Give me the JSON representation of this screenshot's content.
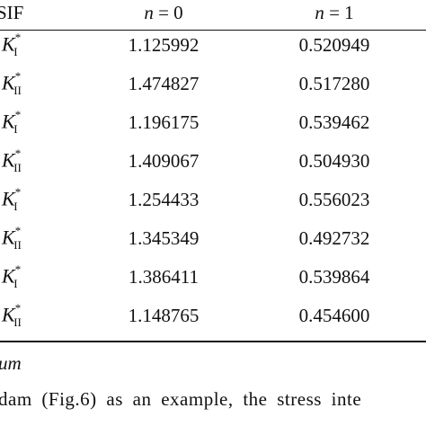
{
  "table": {
    "header": {
      "label": "SIF",
      "columns": [
        {
          "var": "n",
          "text": "= 0"
        },
        {
          "var": "n",
          "text": "= 1"
        }
      ]
    },
    "rows": [
      {
        "symbol": "K",
        "sup": "*",
        "sub": "I",
        "cells": [
          "1.125992",
          "0.520949"
        ]
      },
      {
        "symbol": "K",
        "sup": "*",
        "sub": "II",
        "cells": [
          "1.474827",
          "0.517280"
        ]
      },
      {
        "symbol": "K",
        "sup": "*",
        "sub": "I",
        "cells": [
          "1.196175",
          "0.539462"
        ]
      },
      {
        "symbol": "K",
        "sup": "*",
        "sub": "II",
        "cells": [
          "1.409067",
          "0.504930"
        ]
      },
      {
        "symbol": "K",
        "sup": "*",
        "sub": "I",
        "cells": [
          "1.254433",
          "0.556023"
        ]
      },
      {
        "symbol": "K",
        "sup": "*",
        "sub": "II",
        "cells": [
          "1.345349",
          "0.492732"
        ]
      },
      {
        "symbol": "K",
        "sup": "*",
        "sub": "I",
        "cells": [
          "1.386411",
          "0.539864"
        ]
      },
      {
        "symbol": "K",
        "sup": "*",
        "sub": "II",
        "cells": [
          "1.148765",
          "0.454600"
        ]
      }
    ]
  },
  "body": {
    "heading_fragment": "um",
    "paragraph": "dam (Fig.6) as an example, the stress inte"
  }
}
